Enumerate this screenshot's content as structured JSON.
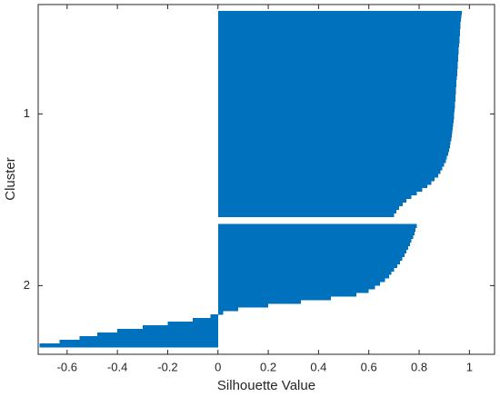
{
  "chart_data": {
    "type": "silhouette",
    "xlabel": "Silhouette Value",
    "ylabel": "Cluster",
    "color": "#0072bd",
    "xlim": [
      -0.715,
      1.1
    ],
    "xticks": [
      -0.6,
      -0.4,
      -0.2,
      0,
      0.2,
      0.4,
      0.6,
      0.8,
      1
    ],
    "clusters": [
      {
        "name": "1",
        "values": [
          0.97,
          0.968,
          0.966,
          0.965,
          0.964,
          0.963,
          0.962,
          0.961,
          0.96,
          0.959,
          0.958,
          0.957,
          0.956,
          0.955,
          0.954,
          0.953,
          0.952,
          0.951,
          0.95,
          0.949,
          0.948,
          0.947,
          0.946,
          0.945,
          0.944,
          0.943,
          0.942,
          0.941,
          0.94,
          0.939,
          0.938,
          0.936,
          0.934,
          0.932,
          0.93,
          0.928,
          0.925,
          0.922,
          0.919,
          0.915,
          0.911,
          0.906,
          0.9,
          0.893,
          0.885,
          0.875,
          0.862,
          0.848,
          0.832,
          0.812,
          0.79,
          0.77,
          0.75,
          0.735,
          0.72,
          0.71,
          0.7
        ]
      },
      {
        "name": "2",
        "values": [
          0.79,
          0.786,
          0.782,
          0.776,
          0.77,
          0.764,
          0.757,
          0.75,
          0.742,
          0.733,
          0.724,
          0.713,
          0.7,
          0.69,
          0.68,
          0.665,
          0.645,
          0.625,
          0.6,
          0.55,
          0.45,
          0.33,
          0.2,
          0.08,
          0.02,
          -0.03,
          -0.1,
          -0.2,
          -0.3,
          -0.4,
          -0.48,
          -0.55,
          -0.63,
          -0.71
        ]
      }
    ]
  }
}
